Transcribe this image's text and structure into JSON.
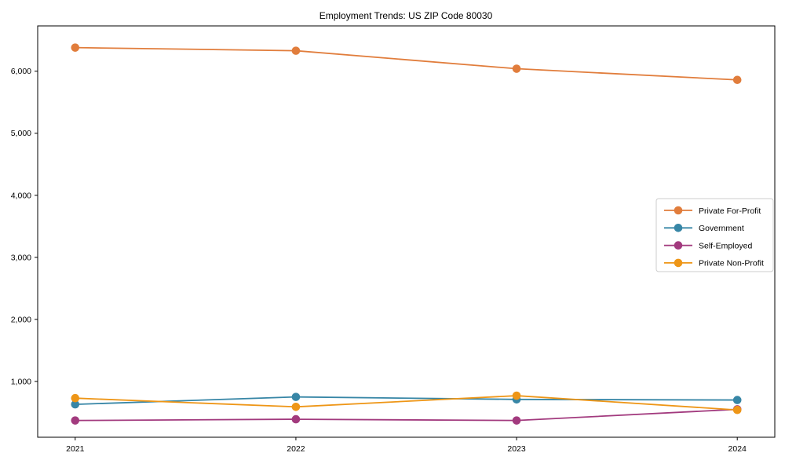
{
  "chart_data": {
    "type": "line",
    "title": "Employment Trends: US ZIP Code 80030",
    "xlabel": "",
    "ylabel": "",
    "x": [
      2021,
      2022,
      2023,
      2024
    ],
    "x_tick_labels": [
      "2021",
      "2022",
      "2023",
      "2024"
    ],
    "y_tick_values": [
      1000,
      2000,
      3000,
      4000,
      5000,
      6000
    ],
    "y_tick_labels": [
      "1,000",
      "2,000",
      "3,000",
      "4,000",
      "5,000",
      "6,000"
    ],
    "xlim": [
      2020.83,
      2024.17
    ],
    "ylim": [
      100,
      6730
    ],
    "grid": false,
    "legend_position": "center-right",
    "marker": "circle",
    "axis_color": "#000000",
    "legend_border_color": "#cccccc",
    "background_color": "#ffffff",
    "series": [
      {
        "name": "Private For-Profit",
        "color": "#e17d3c",
        "values": [
          6380,
          6330,
          6040,
          5860
        ]
      },
      {
        "name": "Government",
        "color": "#3786a6",
        "values": [
          630,
          750,
          710,
          700
        ]
      },
      {
        "name": "Self-Employed",
        "color": "#a23a7e",
        "values": [
          370,
          390,
          370,
          550
        ]
      },
      {
        "name": "Private Non-Profit",
        "color": "#ee9617",
        "values": [
          730,
          590,
          770,
          540
        ]
      }
    ]
  }
}
